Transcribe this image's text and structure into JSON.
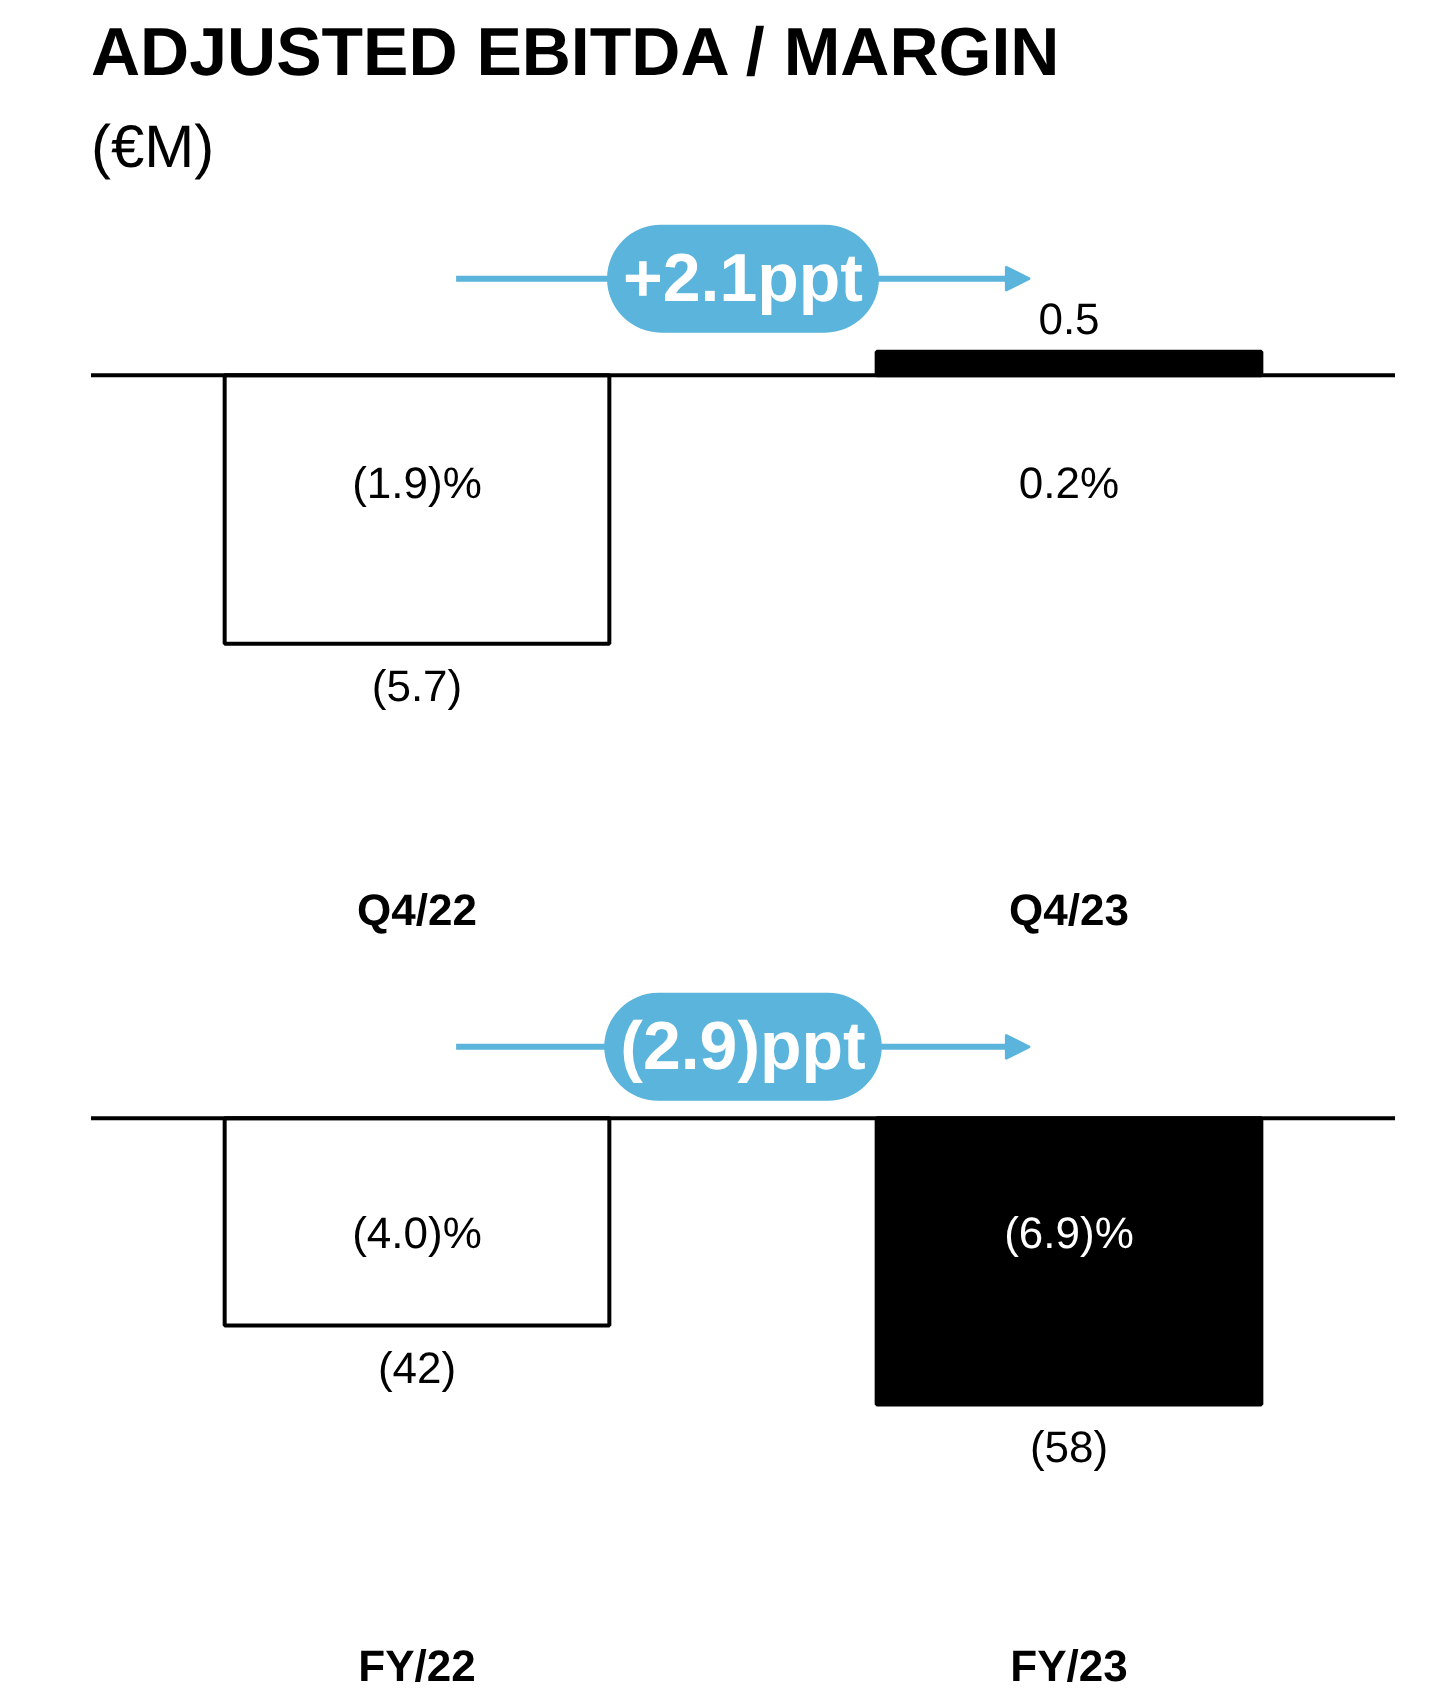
{
  "chart_data": [
    {
      "type": "bar",
      "title": "ADJUSTED EBITDA / MARGIN",
      "subtitle": "(€M)",
      "categories": [
        "Q4/22",
        "Q4/23"
      ],
      "values": [
        -5.7,
        0.5
      ],
      "colors": [
        "#ffffff",
        "#000000"
      ],
      "data_labels": true,
      "value_labels": [
        "(5.7)",
        "0.5"
      ],
      "annotations": [
        "+2.1ppt",
        "(1.9)%",
        "0.2%"
      ]
    },
    {
      "type": "bar",
      "categories": [
        "FY/22",
        "FY/23"
      ],
      "values": [
        -42,
        -58
      ],
      "colors": [
        "#ffffff",
        "#000000"
      ],
      "data_labels": true,
      "value_labels": [
        "(42)",
        "(58)"
      ],
      "annotations": [
        "(2.9)ppt",
        "(4.0)%",
        "(6.9)%"
      ]
    }
  ]
}
